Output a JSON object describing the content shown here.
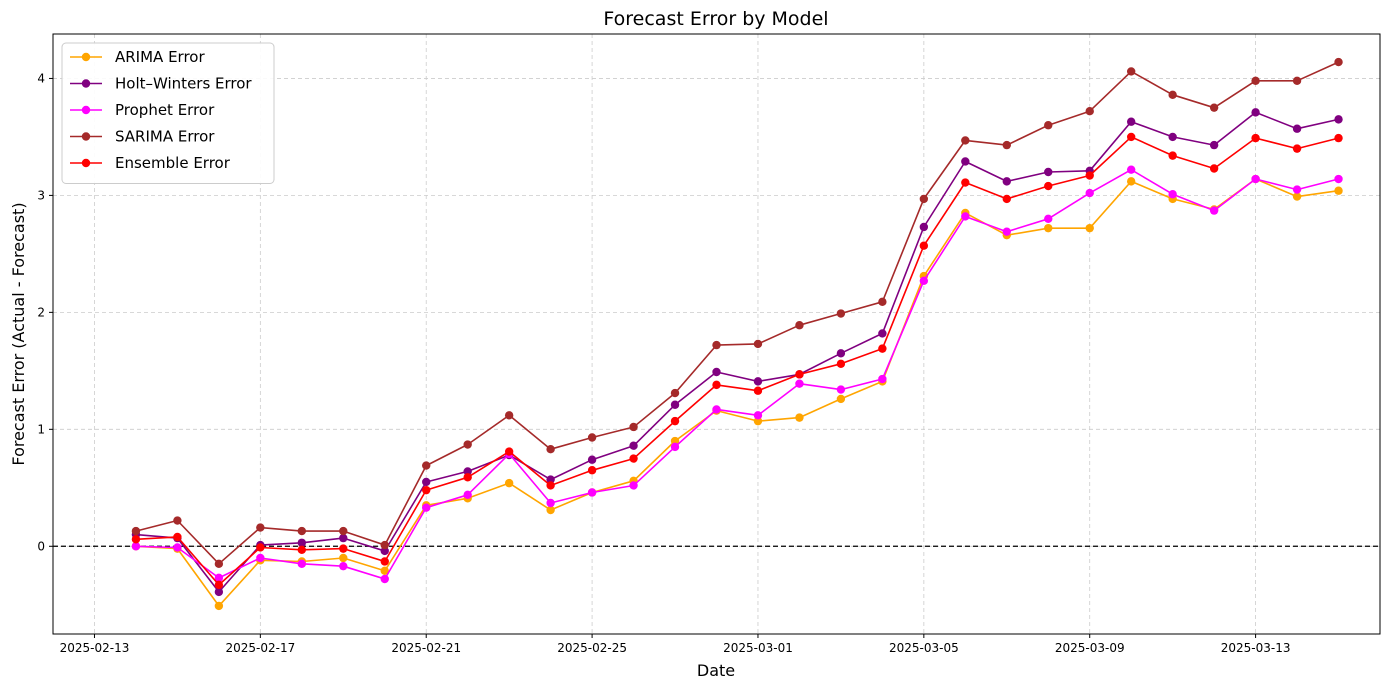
{
  "chart_data": {
    "type": "line",
    "title": "Forecast Error by Model",
    "xlabel": "Date",
    "ylabel": "Forecast Error (Actual - Forecast)",
    "x_tick_labels": [
      "2025-02-13",
      "2025-02-17",
      "2025-02-21",
      "2025-02-25",
      "2025-03-01",
      "2025-03-05",
      "2025-03-09",
      "2025-03-13"
    ],
    "y_tick_labels": [
      "0",
      "1",
      "2",
      "3",
      "4"
    ],
    "ylim": [
      -0.75,
      4.38
    ],
    "xlim": [
      "2025-02-12",
      "2025-03-16"
    ],
    "grid": true,
    "legend_position": "top-left",
    "reference_line": {
      "y": 0,
      "style": "dashed",
      "color": "#000000"
    },
    "x": [
      "2025-02-14",
      "2025-02-15",
      "2025-02-16",
      "2025-02-17",
      "2025-02-18",
      "2025-02-19",
      "2025-02-20",
      "2025-02-21",
      "2025-02-22",
      "2025-02-23",
      "2025-02-24",
      "2025-02-25",
      "2025-02-26",
      "2025-02-27",
      "2025-02-28",
      "2025-03-01",
      "2025-03-02",
      "2025-03-03",
      "2025-03-04",
      "2025-03-05",
      "2025-03-06",
      "2025-03-07",
      "2025-03-08",
      "2025-03-09",
      "2025-03-10",
      "2025-03-11",
      "2025-03-12",
      "2025-03-13",
      "2025-03-14",
      "2025-03-15"
    ],
    "series": [
      {
        "name": "ARIMA Error",
        "color": "#FFA500",
        "values": [
          0.0,
          -0.02,
          -0.51,
          -0.12,
          -0.13,
          -0.1,
          -0.21,
          0.35,
          0.41,
          0.54,
          0.31,
          0.46,
          0.56,
          0.9,
          1.16,
          1.07,
          1.1,
          1.26,
          1.41,
          2.31,
          2.85,
          2.66,
          2.72,
          2.72,
          3.12,
          2.97,
          2.88,
          3.14,
          2.99,
          3.04
        ]
      },
      {
        "name": "Holt–Winters Error",
        "color": "#800080",
        "values": [
          0.1,
          0.07,
          -0.39,
          0.01,
          0.03,
          0.07,
          -0.04,
          0.55,
          0.64,
          0.78,
          0.57,
          0.74,
          0.86,
          1.21,
          1.49,
          1.41,
          1.47,
          1.65,
          1.82,
          2.73,
          3.29,
          3.12,
          3.2,
          3.21,
          3.63,
          3.5,
          3.43,
          3.71,
          3.57,
          3.65
        ]
      },
      {
        "name": "Prophet Error",
        "color": "#FF00FF",
        "values": [
          0.0,
          -0.01,
          -0.27,
          -0.1,
          -0.15,
          -0.17,
          -0.28,
          0.33,
          0.44,
          0.79,
          0.37,
          0.46,
          0.52,
          0.85,
          1.17,
          1.12,
          1.39,
          1.34,
          1.43,
          2.27,
          2.82,
          2.69,
          2.8,
          3.02,
          3.22,
          3.01,
          2.87,
          3.14,
          3.05,
          3.14
        ]
      },
      {
        "name": "SARIMA Error",
        "color": "#A52A2A",
        "values": [
          0.13,
          0.22,
          -0.15,
          0.16,
          0.13,
          0.13,
          0.01,
          0.69,
          0.87,
          1.12,
          0.83,
          0.93,
          1.02,
          1.31,
          1.72,
          1.73,
          1.89,
          1.99,
          2.09,
          2.97,
          3.47,
          3.43,
          3.6,
          3.72,
          4.06,
          3.86,
          3.75,
          3.98,
          3.98,
          4.14
        ]
      },
      {
        "name": "Ensemble Error",
        "color": "#FF0000",
        "values": [
          0.06,
          0.08,
          -0.33,
          -0.01,
          -0.03,
          -0.02,
          -0.13,
          0.48,
          0.59,
          0.81,
          0.52,
          0.65,
          0.75,
          1.07,
          1.38,
          1.33,
          1.47,
          1.56,
          1.69,
          2.57,
          3.11,
          2.97,
          3.08,
          3.17,
          3.5,
          3.34,
          3.23,
          3.49,
          3.4,
          3.49
        ]
      }
    ]
  }
}
